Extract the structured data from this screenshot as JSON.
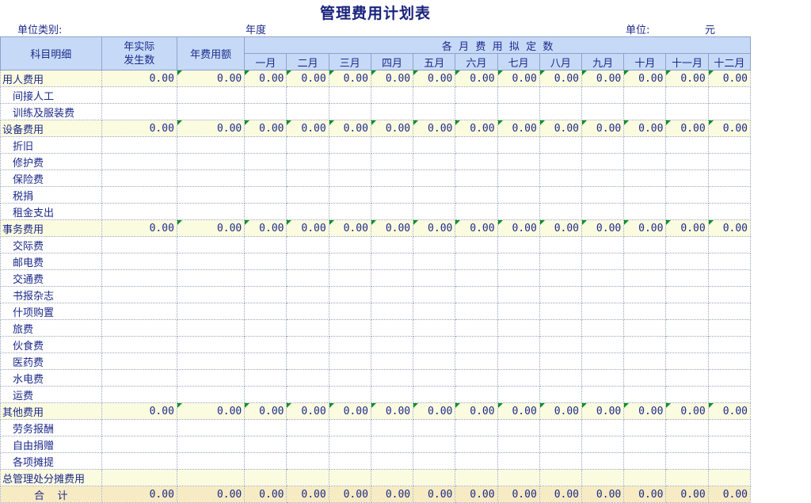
{
  "title": "管理费用计划表",
  "header_row": {
    "dept_label": "单位类别:",
    "year_label": "年度",
    "unit_label": "单位:",
    "unit_value": "元"
  },
  "columns": {
    "item": "科目明细",
    "actual_line1": "年实际",
    "actual_line2": "发生数",
    "annual": "年费用额",
    "monthly_group": "各  月  费  用  拟  定  数",
    "months": [
      "一月",
      "二月",
      "三月",
      "四月",
      "五月",
      "六月",
      "七月",
      "八月",
      "九月",
      "十月",
      "十一月",
      "十二月"
    ]
  },
  "rows": [
    {
      "type": "cat",
      "label": "用人费用",
      "values": [
        "0.00",
        "0.00",
        "0.00",
        "0.00",
        "0.00",
        "0.00",
        "0.00",
        "0.00",
        "0.00",
        "0.00",
        "0.00",
        "0.00",
        "0.00",
        "0.00"
      ]
    },
    {
      "type": "sub",
      "label": "间接人工"
    },
    {
      "type": "sub",
      "label": "训练及服装费"
    },
    {
      "type": "cat",
      "label": "设备费用",
      "values": [
        "0.00",
        "0.00",
        "0.00",
        "0.00",
        "0.00",
        "0.00",
        "0.00",
        "0.00",
        "0.00",
        "0.00",
        "0.00",
        "0.00",
        "0.00",
        "0.00"
      ]
    },
    {
      "type": "sub",
      "label": "折旧"
    },
    {
      "type": "sub",
      "label": "修护费"
    },
    {
      "type": "sub",
      "label": "保险费"
    },
    {
      "type": "sub",
      "label": "税捐"
    },
    {
      "type": "sub",
      "label": "租金支出"
    },
    {
      "type": "cat",
      "label": "事务费用",
      "values": [
        "0.00",
        "0.00",
        "0.00",
        "0.00",
        "0.00",
        "0.00",
        "0.00",
        "0.00",
        "0.00",
        "0.00",
        "0.00",
        "0.00",
        "0.00",
        "0.00"
      ]
    },
    {
      "type": "sub",
      "label": "交际费"
    },
    {
      "type": "sub",
      "label": "邮电费"
    },
    {
      "type": "sub",
      "label": "交通费"
    },
    {
      "type": "sub",
      "label": "书报杂志"
    },
    {
      "type": "sub",
      "label": "什项购置"
    },
    {
      "type": "sub",
      "label": "旅费"
    },
    {
      "type": "sub",
      "label": "伙食费"
    },
    {
      "type": "sub",
      "label": "医药费"
    },
    {
      "type": "sub",
      "label": "水电费"
    },
    {
      "type": "sub",
      "label": "运费"
    },
    {
      "type": "cat",
      "label": "其他费用",
      "values": [
        "0.00",
        "0.00",
        "0.00",
        "0.00",
        "0.00",
        "0.00",
        "0.00",
        "0.00",
        "0.00",
        "0.00",
        "0.00",
        "0.00",
        "0.00",
        "0.00"
      ]
    },
    {
      "type": "sub",
      "label": "劳务报酬"
    },
    {
      "type": "sub",
      "label": "自由捐赠"
    },
    {
      "type": "sub",
      "label": "各项摊提"
    },
    {
      "type": "cat",
      "label": "总管理处分摊费用"
    },
    {
      "type": "total",
      "label": "合    计",
      "values": [
        "0.00",
        "0.00",
        "0.00",
        "0.00",
        "0.00",
        "0.00",
        "0.00",
        "0.00",
        "0.00",
        "0.00",
        "0.00",
        "0.00",
        "0.00",
        "0.00"
      ]
    }
  ],
  "colors": {
    "header_fill": "#c6daf8",
    "category_fill": "#fbfbe0",
    "total_fill": "#f6ebc2",
    "flag": "#0a8f25",
    "text": "#1c2a8a"
  }
}
